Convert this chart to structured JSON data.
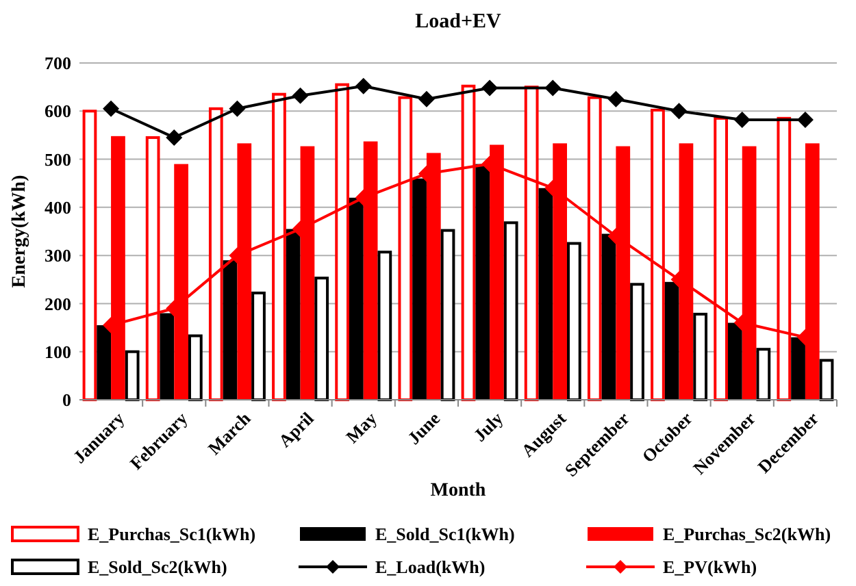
{
  "chart_data": {
    "type": "bar",
    "title": "Load+EV",
    "xlabel": "Month",
    "ylabel": "Energy(kWh)",
    "categories": [
      "January",
      "February",
      "March",
      "April",
      "May",
      "June",
      "July",
      "August",
      "September",
      "October",
      "November",
      "December"
    ],
    "series": [
      {
        "name": "E_Purchas_Sc1(kWh)",
        "color": "#ff0000",
        "values": [
          600,
          545,
          605,
          635,
          655,
          628,
          652,
          650,
          628,
          602,
          585,
          585
        ]
      },
      {
        "name": "E_Sold_Sc1(kWh)",
        "color": "#000000",
        "values": [
          155,
          180,
          290,
          355,
          420,
          460,
          490,
          440,
          345,
          245,
          160,
          130
        ]
      },
      {
        "name": "E_Purchas_Sc2(kWh)",
        "color": "#ff0000",
        "values": [
          548,
          490,
          533,
          527,
          537,
          513,
          530,
          533,
          527,
          533,
          527,
          533
        ]
      },
      {
        "name": "E_Sold_Sc2(kWh)",
        "color": "#000000",
        "values": [
          100,
          133,
          222,
          253,
          307,
          352,
          368,
          325,
          240,
          178,
          105,
          82
        ]
      },
      {
        "name": "E_Load(kWh)",
        "type": "line",
        "color": "#000000",
        "values": [
          605,
          545,
          605,
          632,
          652,
          625,
          648,
          648,
          625,
          600,
          582,
          582
        ]
      },
      {
        "name": "E_PV(kWh)",
        "type": "line",
        "color": "#ff0000",
        "values": [
          155,
          190,
          300,
          355,
          420,
          470,
          490,
          440,
          340,
          250,
          160,
          130
        ]
      }
    ],
    "ylim": [
      0,
      700
    ],
    "yticks": [
      0,
      100,
      200,
      300,
      400,
      500,
      600,
      700
    ],
    "grid": "y",
    "legend": "bottom",
    "marker": "diamond",
    "line_style": "solid"
  }
}
